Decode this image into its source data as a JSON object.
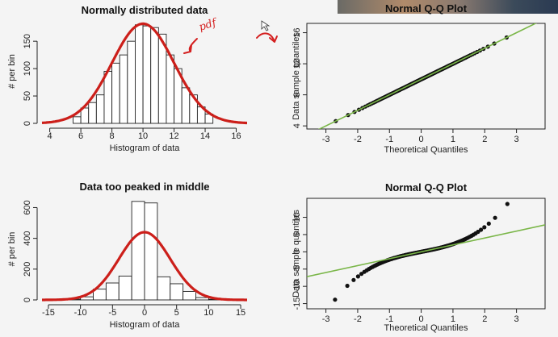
{
  "annotations": {
    "pdf_label": "pdf",
    "arrow_icon": "curved-arrow-icon",
    "cursor_icon": "mouse-cursor-icon",
    "ink_color": "#d42020"
  },
  "colors": {
    "density_curve": "#cc1f1a",
    "qq_line": "#7ab648",
    "qq_points": "#111111",
    "bar_fill": "#ffffff",
    "bar_stroke": "#222222"
  },
  "chart_data": [
    {
      "type": "bar",
      "id": "hist-normal",
      "title": "Normally distributed data",
      "xlabel": "Histogram of data",
      "ylabel": "# per bin",
      "xlim": [
        3.5,
        16.7
      ],
      "ylim": [
        0,
        190
      ],
      "xticks": [
        4,
        6,
        8,
        10,
        12,
        14,
        16
      ],
      "yticks": [
        0,
        50,
        100,
        150
      ],
      "bin_width": 0.5,
      "bins": [
        {
          "x0": 5.5,
          "count": 12
        },
        {
          "x0": 6.0,
          "count": 28
        },
        {
          "x0": 6.5,
          "count": 38
        },
        {
          "x0": 7.0,
          "count": 52
        },
        {
          "x0": 7.5,
          "count": 95
        },
        {
          "x0": 8.0,
          "count": 110
        },
        {
          "x0": 8.5,
          "count": 125
        },
        {
          "x0": 9.0,
          "count": 150
        },
        {
          "x0": 9.5,
          "count": 180
        },
        {
          "x0": 10.0,
          "count": 178
        },
        {
          "x0": 10.5,
          "count": 175
        },
        {
          "x0": 11.0,
          "count": 163
        },
        {
          "x0": 11.5,
          "count": 125
        },
        {
          "x0": 12.0,
          "count": 100
        },
        {
          "x0": 12.5,
          "count": 65
        },
        {
          "x0": 13.0,
          "count": 52
        },
        {
          "x0": 13.5,
          "count": 30
        },
        {
          "x0": 14.0,
          "count": 17
        }
      ],
      "curve": {
        "kind": "normal",
        "mean": 10,
        "sd": 2,
        "peak": 182
      }
    },
    {
      "type": "scatter",
      "id": "qq-normal",
      "title": "Normal Q-Q Plot",
      "xlabel": "Theoretical Quantiles",
      "ylabel": "Data sample quantiles",
      "xlim": [
        -3.6,
        3.9
      ],
      "ylim": [
        3.6,
        17.2
      ],
      "xticks": [
        -3,
        -2,
        -1,
        0,
        1,
        2,
        3
      ],
      "yticks": [
        4,
        8,
        12,
        16
      ],
      "points": {
        "n": 140,
        "kind": "normal",
        "mean": 10,
        "sd": 2
      },
      "reference_line": {
        "intercept": 10,
        "slope": 2
      }
    },
    {
      "type": "bar",
      "id": "hist-peaked",
      "title": "Data too peaked in middle",
      "xlabel": "Histogram of data",
      "ylabel": "# per bin",
      "xlim": [
        -16,
        16
      ],
      "ylim": [
        0,
        660
      ],
      "xticks": [
        -15,
        -10,
        -5,
        0,
        5,
        10,
        15
      ],
      "yticks": [
        0,
        200,
        400,
        600
      ],
      "bin_width": 2,
      "bins": [
        {
          "x0": -12,
          "count": 5
        },
        {
          "x0": -10,
          "count": 20
        },
        {
          "x0": -8,
          "count": 70
        },
        {
          "x0": -6,
          "count": 110
        },
        {
          "x0": -4,
          "count": 155
        },
        {
          "x0": -2,
          "count": 640
        },
        {
          "x0": 0,
          "count": 630
        },
        {
          "x0": 2,
          "count": 150
        },
        {
          "x0": 4,
          "count": 105
        },
        {
          "x0": 6,
          "count": 55
        },
        {
          "x0": 8,
          "count": 15
        },
        {
          "x0": 10,
          "count": 4
        }
      ],
      "curve": {
        "kind": "normal",
        "mean": 0,
        "sd": 4,
        "peak": 440
      }
    },
    {
      "type": "scatter",
      "id": "qq-peaked",
      "title": "Normal Q-Q Plot",
      "xlabel": "Theoretical Quantiles",
      "ylabel": "Data sample quantiles",
      "xlim": [
        -3.6,
        3.9
      ],
      "ylim": [
        -16.5,
        15.5
      ],
      "xticks": [
        -3,
        -2,
        -1,
        0,
        1,
        2,
        3
      ],
      "yticks": [
        -15,
        -10,
        -5,
        0,
        5,
        10
      ],
      "points": {
        "n": 150,
        "kind": "peaked"
      },
      "reference_line": {
        "intercept": 0,
        "slope": 2
      }
    }
  ]
}
